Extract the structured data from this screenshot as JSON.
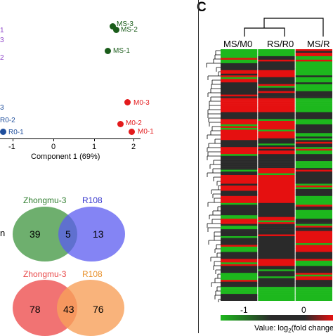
{
  "panel_letter": "C",
  "pca": {
    "xlabel": "Component 1 (69%)",
    "xticks": [
      "-1",
      "0",
      "1",
      "2"
    ],
    "groups": [
      {
        "name": "MS",
        "color": "#1a5c1a",
        "points": [
          {
            "label": "MS-3",
            "x": 1.45,
            "y": 2.6
          },
          {
            "label": "MS-2",
            "x": 1.55,
            "y": 2.5
          },
          {
            "label": "MS-1",
            "x": 1.3,
            "y": 1.8
          }
        ]
      },
      {
        "name": "M0",
        "color": "#e31a1c",
        "points": [
          {
            "label": "M0-3",
            "x": 1.8,
            "y": -0.9
          },
          {
            "label": "M0-2",
            "x": 1.65,
            "y": -1.4
          },
          {
            "label": "M0-1",
            "x": 1.8,
            "y": -1.6
          }
        ]
      },
      {
        "name": "R0",
        "color": "#1f4e9c",
        "points": [
          {
            "label": "R0-2",
            "x": -1.4,
            "y": -1.3
          },
          {
            "label": "R0-1",
            "x": -1.4,
            "y": -1.6
          }
        ]
      }
    ],
    "edge_text": {
      "purple1": "1",
      "purple2": "3",
      "purple3": "2",
      "blue1": "3"
    }
  },
  "venn_top": {
    "left_name": "Zhongmu-3",
    "right_name": "R108",
    "left_only": "39",
    "overlap": "5",
    "right_only": "13",
    "left_color": "#4a9b4a",
    "right_color": "#5b5bf0",
    "edge_text": "n"
  },
  "venn_bottom": {
    "left_name": "Zhongmu-3",
    "right_name": "R108",
    "left_only": "78",
    "overlap": "43",
    "right_only": "76",
    "left_color": "#ee5a5a",
    "right_color": "#f7a05a"
  },
  "heatmap": {
    "columns": [
      "MS/M0",
      "RS/R0",
      "MS/R"
    ],
    "scale_ticks": [
      "-1",
      "0"
    ],
    "scale_label_prefix": "Value: log",
    "scale_label_sub": "2",
    "scale_label_suffix": "(fold change",
    "colors": {
      "low": "#1db81d",
      "mid": "#2a2a2a",
      "high": "#e51010"
    }
  }
}
